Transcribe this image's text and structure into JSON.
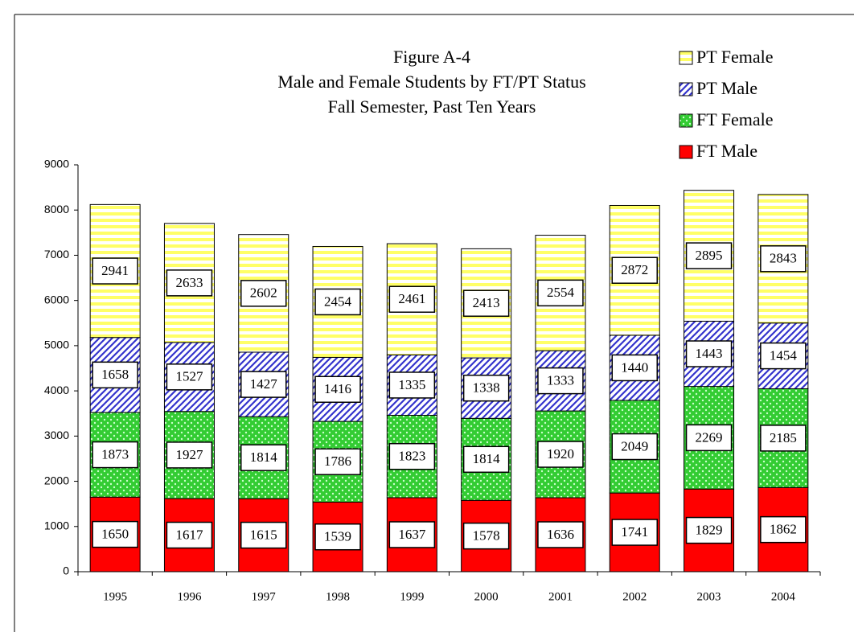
{
  "chart_data": {
    "type": "stacked_bar",
    "title": [
      "Figure A-4",
      "Male and Female Students by FT/PT Status",
      "Fall Semester, Past Ten Years"
    ],
    "categories": [
      "1995",
      "1996",
      "1997",
      "1998",
      "1999",
      "2000",
      "2001",
      "2002",
      "2003",
      "2004"
    ],
    "series": [
      {
        "name": "FT Male",
        "color": "#ff0000",
        "values": [
          1650,
          1617,
          1615,
          1539,
          1637,
          1578,
          1636,
          1741,
          1829,
          1862
        ]
      },
      {
        "name": "FT Female",
        "color": "#33cc33",
        "values": [
          1873,
          1927,
          1814,
          1786,
          1823,
          1814,
          1920,
          2049,
          2269,
          2185
        ]
      },
      {
        "name": "PT Male",
        "color": "#3333cc",
        "values": [
          1658,
          1527,
          1427,
          1416,
          1335,
          1338,
          1333,
          1440,
          1443,
          1454
        ]
      },
      {
        "name": "PT Female",
        "color": "#ffff66",
        "values": [
          2941,
          2633,
          2602,
          2454,
          2461,
          2413,
          2554,
          2872,
          2895,
          2843
        ]
      }
    ],
    "ylim": [
      0,
      9000
    ],
    "yticks": [
      0,
      1000,
      2000,
      3000,
      4000,
      5000,
      6000,
      7000,
      8000,
      9000
    ],
    "legend": "top-right"
  }
}
